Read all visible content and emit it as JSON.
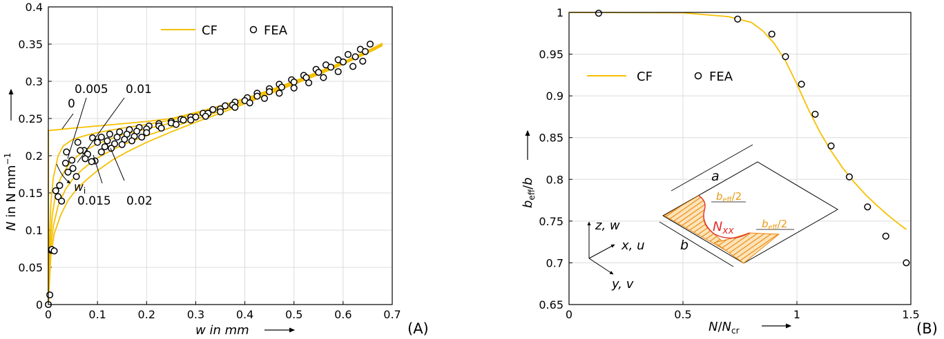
{
  "chart_data": [
    {
      "type": "line",
      "panel_label": "(A)",
      "xlabel": "w in mm",
      "ylabel_parts": {
        "symbol": "N",
        "unit": " in N mm",
        "exp": "−1"
      },
      "xlim": [
        0,
        0.7
      ],
      "ylim": [
        0,
        0.4
      ],
      "xticks": [
        "0",
        "0.1",
        "0.2",
        "0.3",
        "0.4",
        "0.5",
        "0.6",
        "0.7"
      ],
      "xtick_values": [
        0,
        0.1,
        0.2,
        0.3,
        0.4,
        0.5,
        0.6,
        0.7
      ],
      "yticks": [
        "0",
        "0.05",
        "0.1",
        "0.15",
        "0.2",
        "0.25",
        "0.3",
        "0.35",
        "0.4"
      ],
      "ytick_values": [
        0,
        0.05,
        0.1,
        0.15,
        0.2,
        0.25,
        0.3,
        0.35,
        0.4
      ],
      "grid": true,
      "legend": {
        "position": "top-center",
        "entries": [
          {
            "label": "CF",
            "marker": "line"
          },
          {
            "label": "FEA",
            "marker": "circle"
          }
        ]
      },
      "colors": {
        "cf": "#f5c000",
        "fea_edge": "#000000",
        "fea_fill": "#ffffff",
        "grid": "#dcdcdc"
      },
      "annotations": [
        {
          "text": "0",
          "x": 0.018,
          "y": 0.265
        },
        {
          "text": "0.005",
          "x": 0.02,
          "y": 0.29
        },
        {
          "text": "0.01",
          "x": 0.14,
          "y": 0.29
        },
        {
          "text": "0.015",
          "x": 0.035,
          "y": 0.135
        },
        {
          "text": "0.02",
          "x": 0.145,
          "y": 0.135
        },
        {
          "text": "w",
          "sub": "i",
          "x": 0.033,
          "y": 0.165
        }
      ],
      "series": [
        {
          "name": "CF",
          "imperfection": 0,
          "x": [
            0,
            0,
            0.003,
            0.02,
            0.05,
            0.1,
            0.15,
            0.2,
            0.25,
            0.3,
            0.35,
            0.4,
            0.45,
            0.5,
            0.55,
            0.6,
            0.65,
            0.68
          ],
          "y": [
            0,
            0.234,
            0.234,
            0.235,
            0.237,
            0.24,
            0.243,
            0.246,
            0.25,
            0.258,
            0.267,
            0.277,
            0.288,
            0.3,
            0.313,
            0.326,
            0.341,
            0.351
          ]
        },
        {
          "name": "CF",
          "imperfection": 0.005,
          "x": [
            0,
            0.002,
            0.005,
            0.01,
            0.02,
            0.03,
            0.05,
            0.08,
            0.1,
            0.15,
            0.2,
            0.25,
            0.3,
            0.35,
            0.4,
            0.45,
            0.5,
            0.55,
            0.6,
            0.65,
            0.68
          ],
          "y": [
            0,
            0.08,
            0.135,
            0.17,
            0.2,
            0.213,
            0.222,
            0.228,
            0.231,
            0.237,
            0.242,
            0.248,
            0.256,
            0.266,
            0.276,
            0.287,
            0.299,
            0.312,
            0.326,
            0.341,
            0.351
          ]
        },
        {
          "name": "CF",
          "imperfection": 0.01,
          "x": [
            0,
            0.003,
            0.008,
            0.015,
            0.025,
            0.04,
            0.06,
            0.08,
            0.1,
            0.15,
            0.2,
            0.25,
            0.3,
            0.35,
            0.4,
            0.45,
            0.5,
            0.55,
            0.6,
            0.65,
            0.68
          ],
          "y": [
            0,
            0.075,
            0.12,
            0.15,
            0.17,
            0.187,
            0.2,
            0.209,
            0.216,
            0.228,
            0.236,
            0.244,
            0.253,
            0.263,
            0.274,
            0.286,
            0.298,
            0.311,
            0.325,
            0.34,
            0.35
          ]
        },
        {
          "name": "CF",
          "imperfection": 0.015,
          "x": [
            0,
            0.004,
            0.01,
            0.02,
            0.035,
            0.05,
            0.07,
            0.1,
            0.13,
            0.16,
            0.2,
            0.25,
            0.3,
            0.35,
            0.4,
            0.45,
            0.5,
            0.55,
            0.6,
            0.65,
            0.68
          ],
          "y": [
            0,
            0.07,
            0.105,
            0.133,
            0.155,
            0.169,
            0.182,
            0.197,
            0.208,
            0.217,
            0.227,
            0.238,
            0.249,
            0.26,
            0.272,
            0.284,
            0.297,
            0.31,
            0.324,
            0.339,
            0.349
          ]
        },
        {
          "name": "CF",
          "imperfection": 0.02,
          "x": [
            0,
            0.005,
            0.012,
            0.025,
            0.04,
            0.06,
            0.08,
            0.1,
            0.13,
            0.16,
            0.2,
            0.25,
            0.3,
            0.35,
            0.4,
            0.45,
            0.5,
            0.55,
            0.6,
            0.65,
            0.68
          ],
          "y": [
            0,
            0.065,
            0.095,
            0.12,
            0.14,
            0.157,
            0.169,
            0.18,
            0.194,
            0.205,
            0.218,
            0.232,
            0.245,
            0.257,
            0.27,
            0.283,
            0.296,
            0.309,
            0.323,
            0.338,
            0.348
          ]
        },
        {
          "name": "FEA",
          "x": [
            0,
            0.003,
            0.006,
            0.007,
            0.012,
            0.023,
            0.037,
            0.048,
            0.06,
            0.073,
            0.09,
            0.108,
            0.125,
            0.145,
            0.165,
            0.185,
            0.205,
            0.225,
            0.25,
            0.27,
            0.29,
            0.315,
            0.335,
            0.36,
            0.38,
            0.405,
            0.425,
            0.45,
            0.47,
            0.495,
            0.52,
            0.545,
            0.565,
            0.59,
            0.61,
            0.635,
            0.655
          ],
          "y": [
            0,
            0.013,
            0.073,
            0.074,
            0.072,
            0.16,
            0.205,
            0.194,
            0.218,
            0.207,
            0.224,
            0.225,
            0.229,
            0.232,
            0.235,
            0.238,
            0.24,
            0.243,
            0.246,
            0.249,
            0.252,
            0.257,
            0.262,
            0.267,
            0.272,
            0.278,
            0.284,
            0.29,
            0.296,
            0.302,
            0.308,
            0.316,
            0.322,
            0.329,
            0.336,
            0.343,
            0.35
          ]
        },
        {
          "name": "FEA",
          "x": [
            0.015,
            0.035,
            0.05,
            0.065,
            0.08,
            0.1,
            0.12,
            0.14,
            0.16,
            0.18,
            0.2,
            0.225,
            0.25,
            0.275,
            0.3,
            0.325,
            0.35,
            0.375,
            0.4,
            0.425,
            0.45,
            0.475,
            0.5,
            0.525,
            0.55,
            0.575,
            0.6,
            0.625,
            0.645
          ],
          "y": [
            0.153,
            0.19,
            0.183,
            0.207,
            0.202,
            0.218,
            0.22,
            0.225,
            0.229,
            0.233,
            0.236,
            0.24,
            0.244,
            0.248,
            0.252,
            0.257,
            0.263,
            0.268,
            0.274,
            0.28,
            0.286,
            0.292,
            0.299,
            0.305,
            0.312,
            0.319,
            0.326,
            0.333,
            0.34
          ]
        },
        {
          "name": "FEA",
          "x": [
            0.02,
            0.04,
            0.057,
            0.075,
            0.095,
            0.115,
            0.135,
            0.155,
            0.175,
            0.2,
            0.23,
            0.26,
            0.29,
            0.32,
            0.35,
            0.38,
            0.41,
            0.44,
            0.47,
            0.5,
            0.53,
            0.56,
            0.59,
            0.62,
            0.64
          ],
          "y": [
            0.145,
            0.178,
            0.172,
            0.196,
            0.193,
            0.212,
            0.216,
            0.222,
            0.226,
            0.231,
            0.237,
            0.242,
            0.248,
            0.253,
            0.259,
            0.265,
            0.271,
            0.277,
            0.284,
            0.291,
            0.298,
            0.305,
            0.313,
            0.32,
            0.327
          ]
        },
        {
          "name": "FEA",
          "x": [
            0.027,
            0.088,
            0.108,
            0.128,
            0.15,
            0.17,
            0.19
          ],
          "y": [
            0.139,
            0.192,
            0.205,
            0.21,
            0.215,
            0.22,
            0.225
          ]
        }
      ]
    },
    {
      "type": "line",
      "panel_label": "(B)",
      "xlabel_parts": {
        "num": "N",
        "den": "N",
        "den_sub": "cr"
      },
      "ylabel_parts": {
        "num": "b",
        "num_sub": "eff",
        "den": "b"
      },
      "xlim": [
        0,
        1.5
      ],
      "ylim": [
        0.65,
        1
      ],
      "xticks": [
        "0",
        "0.5",
        "1",
        "1.5"
      ],
      "xtick_values": [
        0,
        0.5,
        1,
        1.5
      ],
      "yticks": [
        "0.65",
        "0.7",
        "0.75",
        "0.8",
        "0.85",
        "0.9",
        "0.95",
        "1"
      ],
      "ytick_values": [
        0.65,
        0.7,
        0.75,
        0.8,
        0.85,
        0.9,
        0.95,
        1
      ],
      "grid": true,
      "legend": {
        "position": "upper-left",
        "entries": [
          {
            "label": "CF",
            "marker": "line"
          },
          {
            "label": "FEA",
            "marker": "circle"
          }
        ]
      },
      "colors": {
        "cf": "#f5c000",
        "fea_edge": "#000000",
        "fea_fill": "#ffffff",
        "grid": "#dcdcdc"
      },
      "series": [
        {
          "name": "CF",
          "x": [
            0,
            0.5,
            0.7,
            0.8,
            0.85,
            0.9,
            0.95,
            1.0,
            1.05,
            1.1,
            1.15,
            1.2,
            1.25,
            1.3,
            1.35,
            1.4,
            1.45,
            1.48
          ],
          "y": [
            1.0,
            0.9995,
            0.995,
            0.988,
            0.978,
            0.963,
            0.942,
            0.914,
            0.884,
            0.857,
            0.834,
            0.814,
            0.797,
            0.782,
            0.769,
            0.757,
            0.746,
            0.74
          ]
        },
        {
          "name": "FEA",
          "x": [
            0.13,
            0.74,
            0.89,
            0.95,
            1.02,
            1.08,
            1.15,
            1.23,
            1.31,
            1.39,
            1.48
          ],
          "y": [
            0.999,
            0.992,
            0.974,
            0.947,
            0.914,
            0.878,
            0.84,
            0.803,
            0.767,
            0.732,
            0.7
          ]
        }
      ],
      "inset": {
        "a_label": "a",
        "b_label": "b",
        "nxx_symbol": "N",
        "nxx_sub": "xx",
        "beff_half": {
          "sym": "b",
          "sub": "eff",
          "tail": "/2"
        },
        "axes": [
          {
            "sym": "z",
            "tail": ", w"
          },
          {
            "sym": "x",
            "tail": ", u"
          },
          {
            "sym": "y",
            "tail": ", v"
          }
        ],
        "colors": {
          "hatch": "#e8860c",
          "nxx": "#e03030",
          "beff": "#e89a10"
        }
      }
    }
  ]
}
